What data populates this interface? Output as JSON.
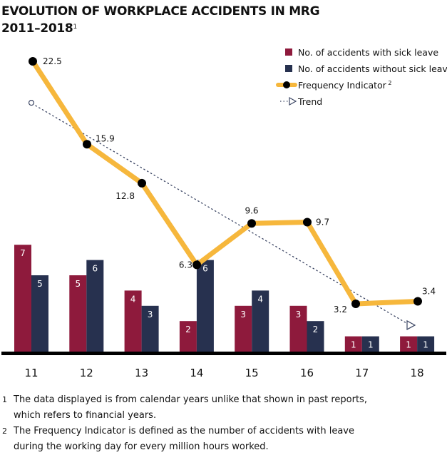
{
  "title": {
    "line1": "EVOLUTION OF WORKPLACE ACCIDENTS IN MRG",
    "line2": "2011–2018",
    "footnote_ref": "1"
  },
  "chart_data": {
    "type": "bar",
    "title": "EVOLUTION OF WORKPLACE ACCIDENTS IN MRG 2011–2018",
    "xlabel": "",
    "ylabel": "",
    "categories": [
      "11",
      "12",
      "13",
      "14",
      "15",
      "16",
      "17",
      "18"
    ],
    "series": [
      {
        "name": "No. of accidents with sick leave",
        "type": "bar",
        "color": "#8e1a3c",
        "values": [
          7,
          5,
          4,
          2,
          3,
          3,
          1,
          1
        ]
      },
      {
        "name": "No. of accidents without sick leave",
        "type": "bar",
        "color": "#27314f",
        "values": [
          5,
          6,
          3,
          6,
          4,
          2,
          1,
          1
        ]
      },
      {
        "name": "Frequency Indicator",
        "type": "line",
        "color": "#f6b73c",
        "marker_color": "#000000",
        "values": [
          22.5,
          15.9,
          12.8,
          6.3,
          9.6,
          9.7,
          3.2,
          3.4
        ],
        "labels": [
          "22.5",
          "15.9",
          "12.8",
          "6.3",
          "9.6",
          "9.7",
          "3.2",
          "3.4"
        ]
      },
      {
        "name": "Trend",
        "type": "line",
        "style": "dotted",
        "color": "#3b4563",
        "start": 19.2,
        "end": 1.5
      }
    ],
    "grid": false,
    "legend": "top-right",
    "legend_entries": [
      {
        "label": "No. of accidents with sick leave",
        "sup": ""
      },
      {
        "label": "No. of accidents without sick leave",
        "sup": ""
      },
      {
        "label": "Frequency Indicator",
        "sup": "2"
      },
      {
        "label": "Trend",
        "sup": ""
      }
    ]
  },
  "footnotes": [
    {
      "num": "1",
      "line1": "The data displayed is from calendar years unlike that shown in past reports,",
      "line2": "which refers to financial years."
    },
    {
      "num": "2",
      "line1": "The Frequency Indicator is defined as the number of accidents with leave",
      "line2": "during the working day for every million hours worked."
    }
  ]
}
